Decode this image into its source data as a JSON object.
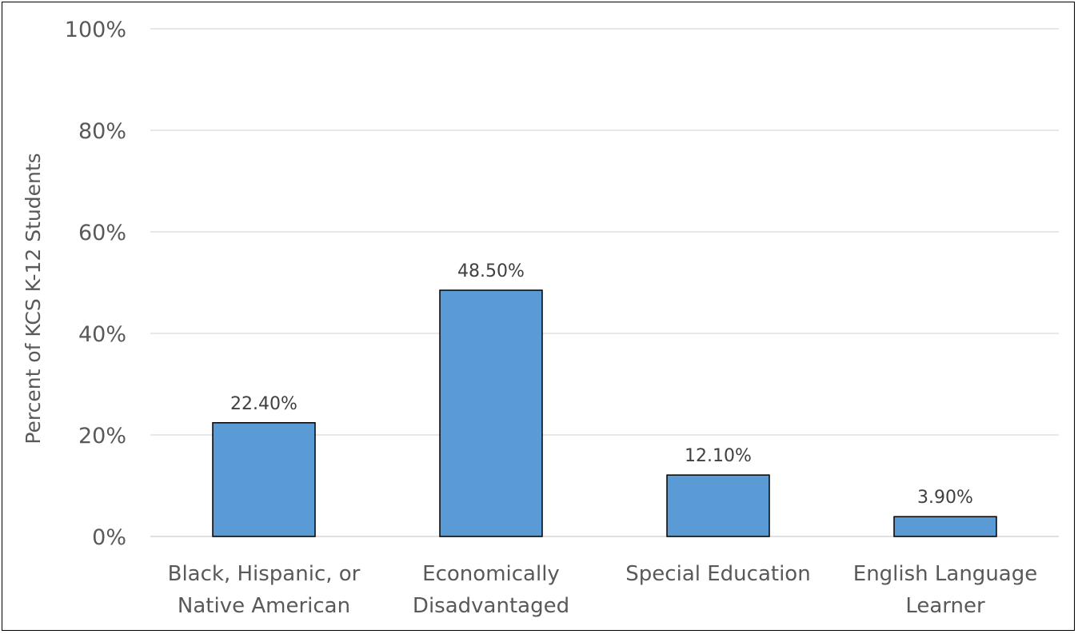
{
  "chart_data": {
    "type": "bar",
    "title": "",
    "xlabel": "",
    "ylabel": "Percent of KCS K-12 Students",
    "categories": [
      [
        "Black, Hispanic, or",
        "Native American"
      ],
      [
        "Economically",
        "Disadvantaged"
      ],
      [
        "Special Education"
      ],
      [
        "English Language",
        "Learner"
      ]
    ],
    "values": [
      22.4,
      48.5,
      12.1,
      3.9
    ],
    "data_labels": [
      "22.40%",
      "48.50%",
      "12.10%",
      "3.90%"
    ],
    "yticks": [
      0,
      20,
      40,
      60,
      80,
      100
    ],
    "ytick_labels": [
      "0%",
      "20%",
      "40%",
      "60%",
      "80%",
      "100%"
    ],
    "ylim": [
      0,
      100
    ],
    "grid": true,
    "legend": "none",
    "bar_color": "#5b9bd5",
    "bar_edge_color": "#000000",
    "grid_color": "#d9d9d9"
  }
}
